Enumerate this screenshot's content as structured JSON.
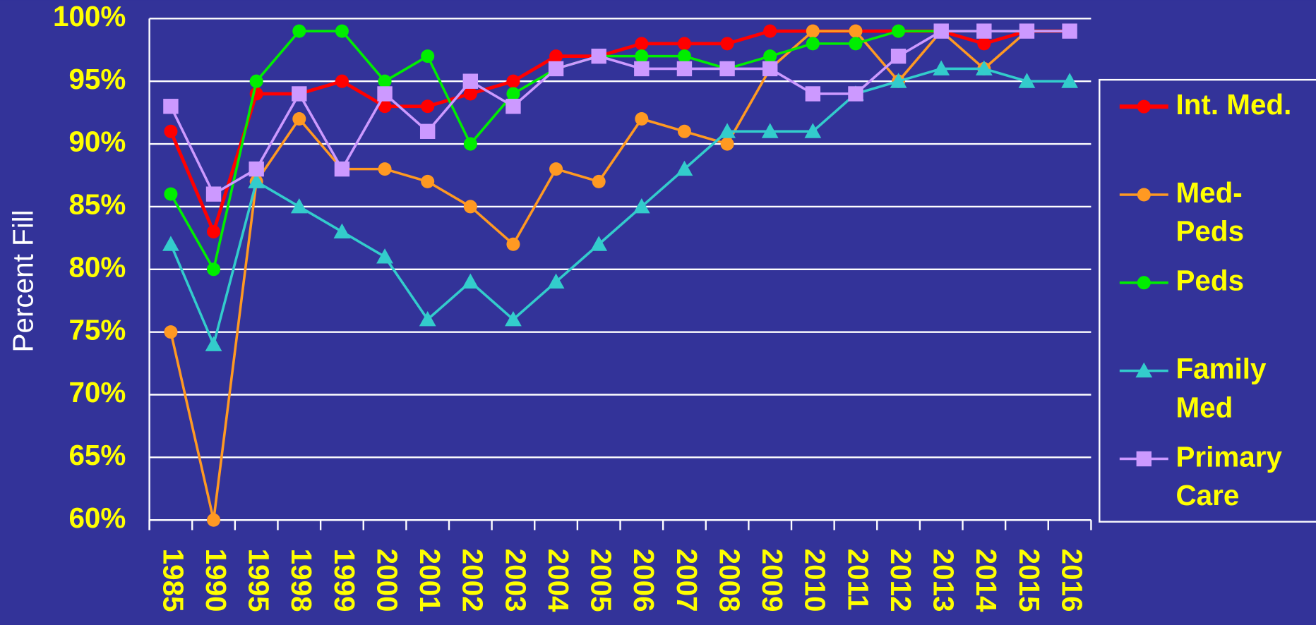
{
  "chart_data": {
    "type": "line",
    "y_label": "Percent Fill",
    "categories": [
      "1985",
      "1990",
      "1995",
      "1998",
      "1999",
      "2000",
      "2001",
      "2002",
      "2003",
      "2004",
      "2005",
      "2006",
      "2007",
      "2008",
      "2009",
      "2010",
      "2011",
      "2012",
      "2013",
      "2014",
      "2015",
      "2016"
    ],
    "ylim": [
      60,
      100
    ],
    "yticks": [
      {
        "value": 60,
        "label": "60%"
      },
      {
        "value": 65,
        "label": "65%"
      },
      {
        "value": 70,
        "label": "70%"
      },
      {
        "value": 75,
        "label": "75%"
      },
      {
        "value": 80,
        "label": "80%"
      },
      {
        "value": 85,
        "label": "85%"
      },
      {
        "value": 90,
        "label": "90%"
      },
      {
        "value": 95,
        "label": "95%"
      },
      {
        "value": 100,
        "label": "100%"
      }
    ],
    "grid": true,
    "legend": "right",
    "series": [
      {
        "name": "Int. Med.",
        "color": "#ff0000",
        "marker": "circle",
        "values": [
          91,
          83,
          94,
          94,
          95,
          93,
          93,
          94,
          95,
          97,
          97,
          98,
          98,
          98,
          99,
          99,
          99,
          99,
          99,
          98,
          99,
          99
        ]
      },
      {
        "name": "Med-Peds",
        "color": "#ff9922",
        "marker": "circle",
        "values": [
          75,
          60,
          87,
          92,
          88,
          88,
          87,
          85,
          82,
          88,
          87,
          92,
          91,
          90,
          96,
          99,
          99,
          95,
          99,
          96,
          99,
          99
        ]
      },
      {
        "name": "Peds",
        "color": "#00ee00",
        "marker": "circle",
        "values": [
          86,
          80,
          95,
          99,
          99,
          95,
          97,
          90,
          94,
          96,
          97,
          97,
          97,
          96,
          97,
          98,
          98,
          99,
          99,
          99,
          99,
          99
        ]
      },
      {
        "name": "Family Med",
        "color": "#33cccc",
        "marker": "triangle",
        "values": [
          82,
          74,
          87,
          85,
          83,
          81,
          76,
          79,
          76,
          79,
          82,
          85,
          88,
          91,
          91,
          91,
          94,
          95,
          96,
          96,
          95,
          95
        ]
      },
      {
        "name": "Primary Care",
        "color": "#cc99ff",
        "marker": "square",
        "values": [
          93,
          86,
          88,
          94,
          88,
          94,
          91,
          95,
          93,
          96,
          97,
          96,
          96,
          96,
          96,
          94,
          94,
          97,
          99,
          99,
          99,
          99
        ]
      }
    ]
  }
}
